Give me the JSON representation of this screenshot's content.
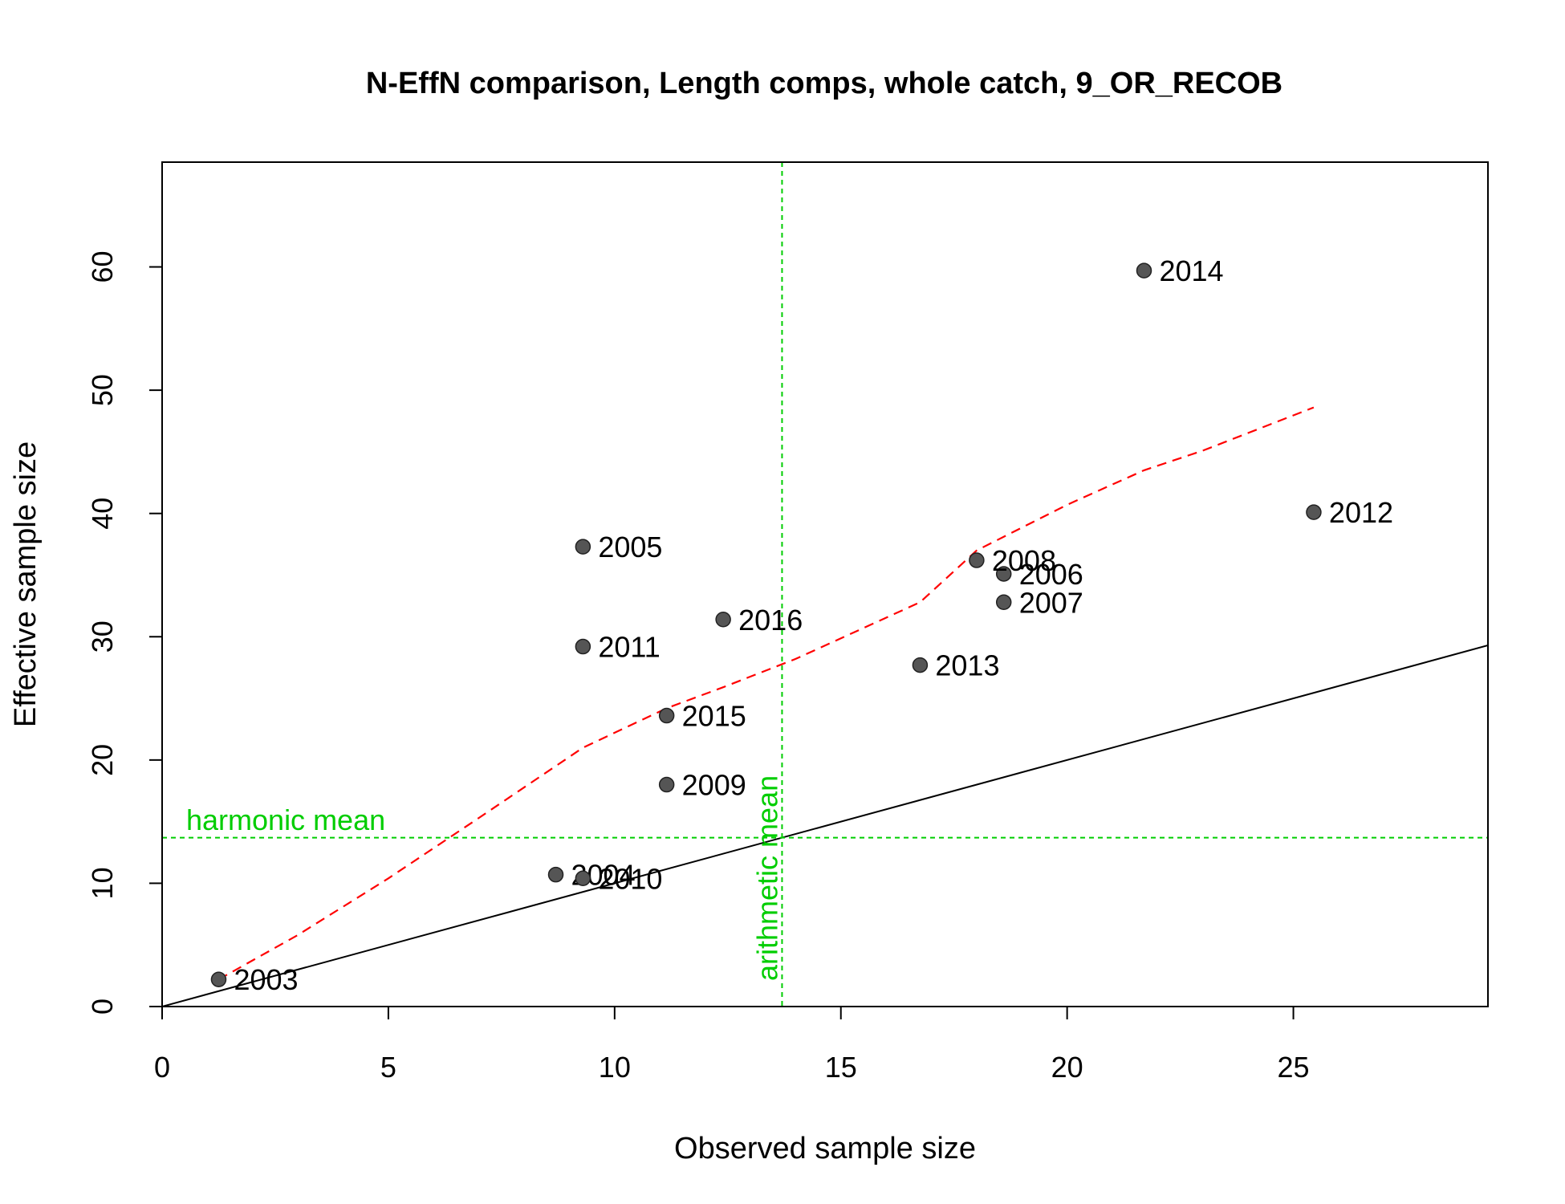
{
  "chart_data": {
    "type": "scatter",
    "title": "N-EffN comparison, Length comps, whole catch, 9_OR_RECOB",
    "xlabel": "Observed sample size",
    "ylabel": "Effective sample size",
    "xlim": [
      0,
      29.3
    ],
    "ylim": [
      0,
      68.5
    ],
    "xticks": [
      0,
      5,
      10,
      15,
      20,
      25
    ],
    "yticks": [
      0,
      10,
      20,
      30,
      40,
      50,
      60
    ],
    "grid": false,
    "points": [
      {
        "label": "2003",
        "x": 1.25,
        "y": 2.2
      },
      {
        "label": "2004",
        "x": 8.7,
        "y": 10.7
      },
      {
        "label": "2005",
        "x": 9.3,
        "y": 37.3
      },
      {
        "label": "2006",
        "x": 18.6,
        "y": 35.1
      },
      {
        "label": "2007",
        "x": 18.6,
        "y": 32.8
      },
      {
        "label": "2008",
        "x": 18.0,
        "y": 36.2
      },
      {
        "label": "2009",
        "x": 11.15,
        "y": 18.0
      },
      {
        "label": "2010",
        "x": 9.3,
        "y": 10.4
      },
      {
        "label": "2011",
        "x": 9.3,
        "y": 29.2
      },
      {
        "label": "2012",
        "x": 25.45,
        "y": 40.1
      },
      {
        "label": "2013",
        "x": 16.75,
        "y": 27.7
      },
      {
        "label": "2014",
        "x": 21.7,
        "y": 59.7
      },
      {
        "label": "2015",
        "x": 11.15,
        "y": 23.6
      },
      {
        "label": "2016",
        "x": 12.4,
        "y": 31.4
      }
    ],
    "loess_line": {
      "color": "#ff0000",
      "x": [
        1.25,
        3.0,
        5.0,
        7.0,
        9.3,
        11.15,
        12.4,
        14.0,
        16.75,
        18.0,
        20.0,
        21.7,
        23.0,
        25.45
      ],
      "y": [
        2.2,
        5.8,
        10.4,
        15.3,
        21.0,
        24.2,
        25.9,
        28.2,
        32.8,
        37.0,
        40.7,
        43.5,
        45.1,
        48.6
      ]
    },
    "identity_line": {
      "color": "#000000",
      "slope": 1,
      "intercept": 0
    },
    "harmonic_mean": {
      "label": "harmonic mean",
      "value": 13.7,
      "color": "#00cd00"
    },
    "arithmetic_mean": {
      "label": "arithmetic mean",
      "value": 13.7,
      "color": "#00cd00"
    },
    "point_color": "#555555"
  }
}
